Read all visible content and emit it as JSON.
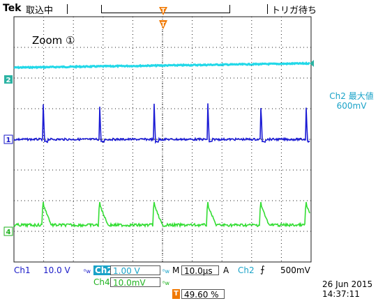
{
  "header": {
    "brand": "Tek",
    "acquisition_status": "取込中",
    "trigger_status": "トリガ待ち"
  },
  "screen": {
    "zoom_label": "Zoom ①",
    "ch2_max_label": "Ch2 最大値",
    "ch2_max_value": "600mV"
  },
  "channel_markers": [
    {
      "label": "2",
      "color": "#2bb3a3"
    },
    {
      "label": "1",
      "color": "#1a1ac8"
    },
    {
      "label": "4",
      "color": "#22b322"
    }
  ],
  "trigger_markers": {
    "top": "T",
    "bottom": "T"
  },
  "colors": {
    "ch1": "#1a1ad4",
    "ch2": "#22d8e8",
    "ch4": "#33dd33",
    "graticule": "#1a1a1a",
    "trigger": "#f07800"
  },
  "readouts": {
    "ch1_label": "Ch1",
    "ch1_scale": "10.0 V",
    "ch2_label": "Ch2",
    "ch2_scale": "1.00 V",
    "timebase_label": "M",
    "timebase": "10.0µs",
    "trigger_mode": "A",
    "trigger_source": "Ch2",
    "trigger_level": "500mV",
    "ch4_label": "Ch4",
    "ch4_scale": "10.0mV",
    "trigger_position": "49.60 %"
  },
  "datetime": {
    "date": "26 Jun  2015",
    "time": "14:37:11"
  }
}
